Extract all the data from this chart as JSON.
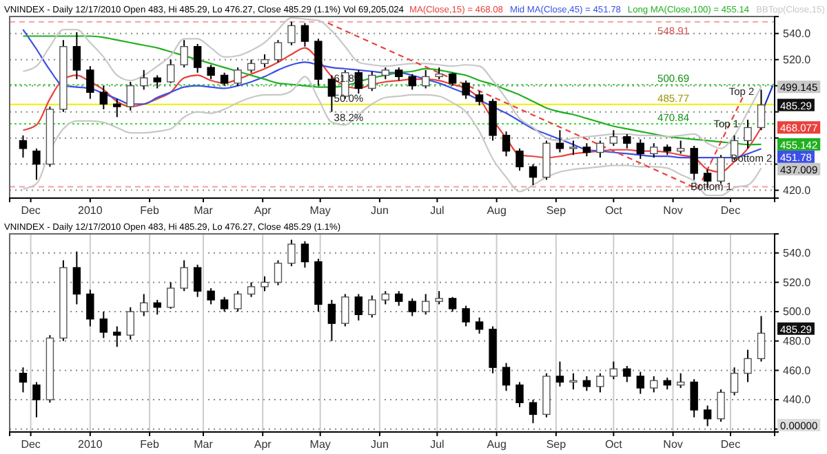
{
  "chart_data": [
    {
      "type": "candlestick",
      "title": "VNINDEX - Daily 12/17/2010 Open 483, Hi 485.29, Lo 476.27, Close 485.29 (1.1%) Vol 69,205,024",
      "legend": "top",
      "grid": "y",
      "x": [
        "2009-11-27",
        "2009-12-04",
        "2009-12-11",
        "2009-12-18",
        "2009-12-25",
        "2010-01-01",
        "2010-01-08",
        "2010-01-15",
        "2010-01-22",
        "2010-01-29",
        "2010-02-05",
        "2010-02-12",
        "2010-02-19",
        "2010-02-26",
        "2010-03-05",
        "2010-03-12",
        "2010-03-19",
        "2010-03-26",
        "2010-04-02",
        "2010-04-09",
        "2010-04-16",
        "2010-04-23",
        "2010-04-30",
        "2010-05-07",
        "2010-05-14",
        "2010-05-21",
        "2010-05-28",
        "2010-06-04",
        "2010-06-11",
        "2010-06-18",
        "2010-06-25",
        "2010-07-02",
        "2010-07-09",
        "2010-07-16",
        "2010-07-23",
        "2010-07-30",
        "2010-08-06",
        "2010-08-13",
        "2010-08-20",
        "2010-08-27",
        "2010-09-03",
        "2010-09-10",
        "2010-09-17",
        "2010-09-24",
        "2010-10-01",
        "2010-10-08",
        "2010-10-15",
        "2010-10-22",
        "2010-10-29",
        "2010-11-05",
        "2010-11-12",
        "2010-11-19",
        "2010-11-26",
        "2010-12-03",
        "2010-12-10",
        "2010-12-17"
      ],
      "ohlc": [
        [
          458,
          462,
          445,
          452
        ],
        [
          450,
          452,
          428,
          440
        ],
        [
          440,
          484,
          438,
          482
        ],
        [
          482,
          535,
          480,
          530
        ],
        [
          530,
          541,
          505,
          512
        ],
        [
          512,
          515,
          490,
          495
        ],
        [
          495,
          500,
          482,
          486
        ],
        [
          486,
          490,
          476,
          484
        ],
        [
          484,
          503,
          481,
          500
        ],
        [
          500,
          512,
          497,
          506
        ],
        [
          506,
          508,
          498,
          503
        ],
        [
          503,
          520,
          502,
          516
        ],
        [
          516,
          535,
          514,
          530
        ],
        [
          530,
          532,
          510,
          514
        ],
        [
          514,
          516,
          505,
          508
        ],
        [
          508,
          510,
          500,
          502
        ],
        [
          502,
          514,
          500,
          512
        ],
        [
          512,
          520,
          510,
          517
        ],
        [
          517,
          524,
          514,
          520
        ],
        [
          520,
          535,
          518,
          533
        ],
        [
          533,
          549,
          531,
          546
        ],
        [
          546,
          548,
          530,
          534
        ],
        [
          534,
          536,
          500,
          505
        ],
        [
          505,
          508,
          480,
          492
        ],
        [
          492,
          512,
          490,
          510
        ],
        [
          510,
          512,
          494,
          498
        ],
        [
          498,
          511,
          496,
          508
        ],
        [
          508,
          514,
          505,
          512
        ],
        [
          512,
          514,
          504,
          507
        ],
        [
          507,
          509,
          497,
          500
        ],
        [
          500,
          512,
          498,
          507
        ],
        [
          507,
          514,
          505,
          509
        ],
        [
          509,
          510,
          500,
          502
        ],
        [
          502,
          504,
          490,
          493
        ],
        [
          493,
          496,
          485,
          488
        ],
        [
          488,
          490,
          458,
          462
        ],
        [
          462,
          465,
          446,
          450
        ],
        [
          450,
          452,
          435,
          438
        ],
        [
          438,
          440,
          424,
          430
        ],
        [
          430,
          458,
          428,
          456
        ],
        [
          456,
          466,
          449,
          452
        ],
        [
          452,
          458,
          447,
          453
        ],
        [
          453,
          456,
          446,
          449
        ],
        [
          449,
          458,
          445,
          456
        ],
        [
          456,
          466,
          454,
          461
        ],
        [
          461,
          463,
          452,
          456
        ],
        [
          456,
          459,
          444,
          448
        ],
        [
          448,
          456,
          445,
          453
        ],
        [
          453,
          455,
          447,
          450
        ],
        [
          450,
          458,
          448,
          452
        ],
        [
          452,
          454,
          428,
          433
        ],
        [
          433,
          436,
          422,
          427
        ],
        [
          427,
          447,
          425,
          445
        ],
        [
          445,
          462,
          443,
          458
        ],
        [
          458,
          474,
          452,
          468
        ],
        [
          468,
          497,
          466,
          485.29
        ]
      ],
      "xlim": [
        "2009-11-20",
        "2010-12-24"
      ],
      "xticks": [
        {
          "value": "2009-12-01",
          "label": "Dec"
        },
        {
          "value": "2010-01-01",
          "label": "2010"
        },
        {
          "value": "2010-02-01",
          "label": "Feb"
        },
        {
          "value": "2010-03-01",
          "label": "Mar"
        },
        {
          "value": "2010-04-01",
          "label": "Apr"
        },
        {
          "value": "2010-05-01",
          "label": "May"
        },
        {
          "value": "2010-06-01",
          "label": "Jun"
        },
        {
          "value": "2010-07-01",
          "label": "Jul"
        },
        {
          "value": "2010-08-01",
          "label": "Aug"
        },
        {
          "value": "2010-09-01",
          "label": "Sep"
        },
        {
          "value": "2010-10-01",
          "label": "Oct"
        },
        {
          "value": "2010-11-01",
          "label": "Nov"
        },
        {
          "value": "2010-12-01",
          "label": "Dec"
        }
      ],
      "ylim": [
        414,
        553
      ],
      "yticks": [
        {
          "value": 420,
          "label": "420.0"
        },
        {
          "value": 440,
          "label": null
        },
        {
          "value": 460,
          "label": null
        },
        {
          "value": 480,
          "label": null
        },
        {
          "value": 500,
          "label": null
        },
        {
          "value": 520,
          "label": "520.0"
        },
        {
          "value": 540,
          "label": "540.0"
        }
      ],
      "series": [
        {
          "type": "line",
          "name": "MA(Close,15) = 468.08",
          "color": "#e8413c",
          "values": [
            466,
            470,
            490,
            505,
            508,
            503,
            497,
            488,
            484,
            486,
            490,
            495,
            506,
            508,
            504,
            502,
            505,
            509,
            513,
            518,
            524,
            529,
            520,
            507,
            500,
            498,
            501,
            503,
            504,
            505,
            505,
            504,
            501,
            498,
            490,
            474,
            460,
            447,
            446,
            445,
            446,
            448,
            449,
            450,
            451,
            451,
            450,
            450,
            449,
            447,
            445,
            436,
            434,
            442,
            452,
            468.077
          ],
          "value_labels": [
            null,
            null,
            null,
            null,
            null,
            null,
            null,
            null,
            null,
            null,
            null,
            null,
            null,
            null,
            null,
            null,
            null,
            null,
            null,
            null,
            null,
            null,
            null,
            null,
            null,
            null,
            null,
            null,
            null,
            null,
            null,
            null,
            null,
            null,
            null,
            null,
            null,
            null,
            null,
            null,
            null,
            null,
            null,
            null,
            null,
            null,
            null,
            null,
            null,
            null,
            null,
            null,
            null,
            null,
            null,
            "468.077"
          ]
        },
        {
          "type": "line",
          "name": "Mid MA(Close,45) = 451.78",
          "color": "#3c50e6",
          "values": [
            543,
            528,
            512,
            500,
            499,
            498,
            494,
            490,
            486,
            486,
            491,
            495,
            499,
            500,
            499,
            498,
            500,
            503,
            507,
            512,
            516,
            518,
            516,
            514,
            513,
            512,
            511,
            510,
            510,
            508,
            505,
            502,
            498,
            494,
            489,
            484,
            479,
            473,
            467,
            463,
            459,
            455,
            451,
            450,
            449,
            448,
            447,
            446,
            446,
            445,
            445,
            445,
            445,
            445,
            448,
            451.78
          ],
          "value_labels": [
            null,
            null,
            null,
            null,
            null,
            null,
            null,
            null,
            null,
            null,
            null,
            null,
            null,
            null,
            null,
            null,
            null,
            null,
            null,
            null,
            null,
            null,
            null,
            null,
            null,
            null,
            null,
            null,
            null,
            null,
            null,
            null,
            null,
            null,
            null,
            null,
            null,
            null,
            null,
            null,
            null,
            null,
            null,
            null,
            null,
            null,
            null,
            null,
            null,
            null,
            null,
            null,
            null,
            null,
            null,
            "451.78"
          ]
        },
        {
          "type": "line",
          "name": "Long MA(Close,100) = 455.14",
          "color": "#20b020",
          "values": [
            538,
            538,
            538,
            538,
            538,
            538,
            537,
            535,
            533,
            531,
            529,
            526,
            523,
            520,
            517,
            514,
            511,
            508,
            505,
            502,
            501,
            500,
            499,
            499,
            500,
            503,
            506,
            508,
            510,
            511,
            513,
            512,
            510,
            508,
            504,
            501,
            497,
            493,
            488,
            483,
            480,
            478,
            475,
            472,
            469,
            467,
            465,
            463,
            461,
            460,
            459,
            458,
            457,
            456,
            455,
            455.142
          ],
          "value_labels": [
            null,
            null,
            null,
            null,
            null,
            null,
            null,
            null,
            null,
            null,
            null,
            null,
            null,
            null,
            null,
            null,
            null,
            null,
            null,
            null,
            null,
            null,
            null,
            null,
            null,
            null,
            null,
            null,
            null,
            null,
            null,
            null,
            null,
            null,
            null,
            null,
            null,
            null,
            null,
            null,
            null,
            null,
            null,
            null,
            null,
            null,
            null,
            null,
            null,
            null,
            null,
            null,
            null,
            null,
            null,
            "455.142"
          ]
        },
        {
          "type": "line",
          "name": "BBTop(Close,15)",
          "color": "#c8c8c8",
          "values": [
            511,
            515,
            530,
            543,
            543,
            533,
            522,
            508,
            504,
            508,
            515,
            523,
            536,
            536,
            529,
            522,
            523,
            527,
            533,
            543,
            552,
            551,
            550,
            542,
            530,
            518,
            516,
            515,
            516,
            517,
            517,
            516,
            515,
            516,
            515,
            504,
            490,
            475,
            468,
            460,
            458,
            460,
            461,
            462,
            463,
            463,
            462,
            462,
            461,
            462,
            463,
            456,
            452,
            462,
            480,
            499.145
          ],
          "value_labels": [
            null,
            null,
            null,
            null,
            null,
            null,
            null,
            null,
            null,
            null,
            null,
            null,
            null,
            null,
            null,
            null,
            null,
            null,
            null,
            null,
            null,
            null,
            null,
            null,
            null,
            null,
            null,
            null,
            null,
            null,
            null,
            null,
            null,
            null,
            null,
            null,
            null,
            null,
            null,
            null,
            null,
            null,
            null,
            null,
            null,
            null,
            null,
            null,
            null,
            null,
            null,
            null,
            null,
            null,
            null,
            "499.145"
          ]
        },
        {
          "type": "line",
          "color": "#c8c8c8",
          "values": [
            421,
            425,
            450,
            467,
            473,
            473,
            472,
            468,
            464,
            464,
            465,
            467,
            476,
            480,
            479,
            482,
            487,
            491,
            493,
            493,
            496,
            507,
            490,
            472,
            470,
            478,
            486,
            491,
            492,
            493,
            493,
            492,
            487,
            480,
            465,
            444,
            430,
            419,
            424,
            430,
            434,
            436,
            437,
            438,
            439,
            439,
            438,
            438,
            437,
            432,
            427,
            416,
            416,
            422,
            424,
            437.009
          ],
          "value_labels": [
            null,
            null,
            null,
            null,
            null,
            null,
            null,
            null,
            null,
            null,
            null,
            null,
            null,
            null,
            null,
            null,
            null,
            null,
            null,
            null,
            null,
            null,
            null,
            null,
            null,
            null,
            null,
            null,
            null,
            null,
            null,
            null,
            null,
            null,
            null,
            null,
            null,
            null,
            null,
            null,
            null,
            null,
            null,
            null,
            null,
            null,
            null,
            null,
            null,
            null,
            null,
            null,
            null,
            null,
            null,
            "437.009"
          ]
        },
        {
          "type": "line",
          "color": "#e8413c",
          "line_style": "dashed",
          "x": [
            "2010-05-05",
            "2010-11-14"
          ],
          "values": [
            548,
            421
          ]
        },
        {
          "type": "line",
          "color": "#e8413c",
          "line_style": "dashed",
          "x": [
            "2010-11-14",
            "2010-12-08"
          ],
          "values": [
            421,
            493
          ]
        },
        {
          "type": "line",
          "color": "#2030c0",
          "x": [
            "2010-12-18",
            "2010-12-23"
          ],
          "values": [
            482,
            500
          ]
        }
      ],
      "ref_lines": [
        {
          "axis": "y",
          "value": 548.91,
          "label": "548.91",
          "color": "#f4a0a0",
          "line_style": "dashed"
        },
        {
          "axis": "y",
          "value": 500.69,
          "label": "500.69",
          "color": "#38d838",
          "line_style": "dotted"
        },
        {
          "axis": "y",
          "value": 485.77,
          "label": "485.77",
          "color": "#f0f000",
          "line_style": "solid"
        },
        {
          "axis": "y",
          "value": 470.84,
          "label": "470.84",
          "color": "#38d838",
          "line_style": "dotted"
        },
        {
          "axis": "y",
          "value": 422.63,
          "label": null,
          "color": "#f4a0a0",
          "line_style": "dashed"
        }
      ],
      "annotations": [
        {
          "text": "61.8%",
          "x": "2010-05-06",
          "y": 500.69
        },
        {
          "text": "50.0%",
          "x": "2010-05-06",
          "y": 485.77
        },
        {
          "text": "38.2%",
          "x": "2010-05-06",
          "y": 470.84
        },
        {
          "text": "Top 1",
          "x": "2010-11-20",
          "y": 466
        },
        {
          "text": "Top 2",
          "x": "2010-11-28",
          "y": 491
        },
        {
          "text": "Bottom 2",
          "x": "2010-11-29",
          "y": 440
        },
        {
          "text": "Bottom 1",
          "x": "2010-11-08",
          "y": 418
        },
        {
          "text": "485.29",
          "x": "2010-12-17",
          "y": 485.29
        }
      ]
    },
    {
      "type": "candlestick",
      "title": "VNINDEX - Daily 12/17/2010 Open 483, Hi 485.29, Lo 476.27, Close 485.29 (1.1%)",
      "grid": true,
      "x": [
        "2009-11-27",
        "2009-12-04",
        "2009-12-11",
        "2009-12-18",
        "2009-12-25",
        "2010-01-01",
        "2010-01-08",
        "2010-01-15",
        "2010-01-22",
        "2010-01-29",
        "2010-02-05",
        "2010-02-12",
        "2010-02-19",
        "2010-02-26",
        "2010-03-05",
        "2010-03-12",
        "2010-03-19",
        "2010-03-26",
        "2010-04-02",
        "2010-04-09",
        "2010-04-16",
        "2010-04-23",
        "2010-04-30",
        "2010-05-07",
        "2010-05-14",
        "2010-05-21",
        "2010-05-28",
        "2010-06-04",
        "2010-06-11",
        "2010-06-18",
        "2010-06-25",
        "2010-07-02",
        "2010-07-09",
        "2010-07-16",
        "2010-07-23",
        "2010-07-30",
        "2010-08-06",
        "2010-08-13",
        "2010-08-20",
        "2010-08-27",
        "2010-09-03",
        "2010-09-10",
        "2010-09-17",
        "2010-09-24",
        "2010-10-01",
        "2010-10-08",
        "2010-10-15",
        "2010-10-22",
        "2010-10-29",
        "2010-11-05",
        "2010-11-12",
        "2010-11-19",
        "2010-11-26",
        "2010-12-03",
        "2010-12-10",
        "2010-12-17"
      ],
      "ohlc": [
        [
          458,
          462,
          445,
          452
        ],
        [
          450,
          452,
          428,
          440
        ],
        [
          440,
          484,
          438,
          482
        ],
        [
          482,
          535,
          480,
          530
        ],
        [
          530,
          541,
          505,
          512
        ],
        [
          512,
          515,
          490,
          495
        ],
        [
          495,
          500,
          482,
          486
        ],
        [
          486,
          490,
          476,
          484
        ],
        [
          484,
          503,
          481,
          500
        ],
        [
          500,
          512,
          497,
          506
        ],
        [
          506,
          508,
          498,
          503
        ],
        [
          503,
          520,
          502,
          516
        ],
        [
          516,
          535,
          514,
          530
        ],
        [
          530,
          532,
          510,
          514
        ],
        [
          514,
          516,
          505,
          508
        ],
        [
          508,
          510,
          500,
          502
        ],
        [
          502,
          514,
          500,
          512
        ],
        [
          512,
          520,
          510,
          517
        ],
        [
          517,
          524,
          514,
          520
        ],
        [
          520,
          535,
          518,
          533
        ],
        [
          533,
          549,
          531,
          546
        ],
        [
          546,
          548,
          530,
          534
        ],
        [
          534,
          536,
          500,
          505
        ],
        [
          505,
          508,
          480,
          492
        ],
        [
          492,
          512,
          490,
          510
        ],
        [
          510,
          512,
          494,
          498
        ],
        [
          498,
          511,
          496,
          508
        ],
        [
          508,
          514,
          505,
          512
        ],
        [
          512,
          514,
          504,
          507
        ],
        [
          507,
          509,
          497,
          500
        ],
        [
          500,
          512,
          498,
          507
        ],
        [
          507,
          514,
          505,
          509
        ],
        [
          509,
          510,
          500,
          502
        ],
        [
          502,
          504,
          490,
          493
        ],
        [
          493,
          496,
          485,
          488
        ],
        [
          488,
          490,
          458,
          462
        ],
        [
          462,
          465,
          446,
          450
        ],
        [
          450,
          452,
          435,
          438
        ],
        [
          438,
          440,
          424,
          430
        ],
        [
          430,
          458,
          428,
          456
        ],
        [
          456,
          466,
          449,
          452
        ],
        [
          452,
          458,
          447,
          453
        ],
        [
          453,
          456,
          446,
          449
        ],
        [
          449,
          458,
          445,
          456
        ],
        [
          456,
          466,
          454,
          461
        ],
        [
          461,
          463,
          452,
          456
        ],
        [
          456,
          459,
          444,
          448
        ],
        [
          448,
          456,
          445,
          453
        ],
        [
          453,
          455,
          447,
          450
        ],
        [
          450,
          458,
          448,
          452
        ],
        [
          452,
          454,
          428,
          433
        ],
        [
          433,
          436,
          422,
          427
        ],
        [
          427,
          447,
          425,
          445
        ],
        [
          445,
          462,
          443,
          458
        ],
        [
          458,
          474,
          452,
          468
        ],
        [
          468,
          497,
          466,
          485.29
        ]
      ],
      "xlim": [
        "2009-11-20",
        "2010-12-24"
      ],
      "xticks": [
        {
          "value": "2009-12-01",
          "label": "Dec"
        },
        {
          "value": "2010-01-01",
          "label": "2010"
        },
        {
          "value": "2010-02-01",
          "label": "Feb"
        },
        {
          "value": "2010-03-01",
          "label": "Mar"
        },
        {
          "value": "2010-04-01",
          "label": "Apr"
        },
        {
          "value": "2010-05-01",
          "label": "May"
        },
        {
          "value": "2010-06-01",
          "label": "Jun"
        },
        {
          "value": "2010-07-01",
          "label": "Jul"
        },
        {
          "value": "2010-08-01",
          "label": "Aug"
        },
        {
          "value": "2010-09-01",
          "label": "Sep"
        },
        {
          "value": "2010-10-01",
          "label": "Oct"
        },
        {
          "value": "2010-11-01",
          "label": "Nov"
        },
        {
          "value": "2010-12-01",
          "label": "Dec"
        }
      ],
      "ylim": [
        418,
        553
      ],
      "yticks": [
        {
          "value": 420,
          "label": null
        },
        {
          "value": 440,
          "label": "440.0"
        },
        {
          "value": 460,
          "label": "460.0"
        },
        {
          "value": 480,
          "label": "480.0"
        },
        {
          "value": 500,
          "label": "500.0"
        },
        {
          "value": 520,
          "label": "520.0"
        },
        {
          "value": 540,
          "label": "540.0"
        }
      ],
      "annotations": [
        {
          "text": "485.29",
          "x": "2010-12-17",
          "y": 485.29
        },
        "0.00000"
      ]
    }
  ]
}
